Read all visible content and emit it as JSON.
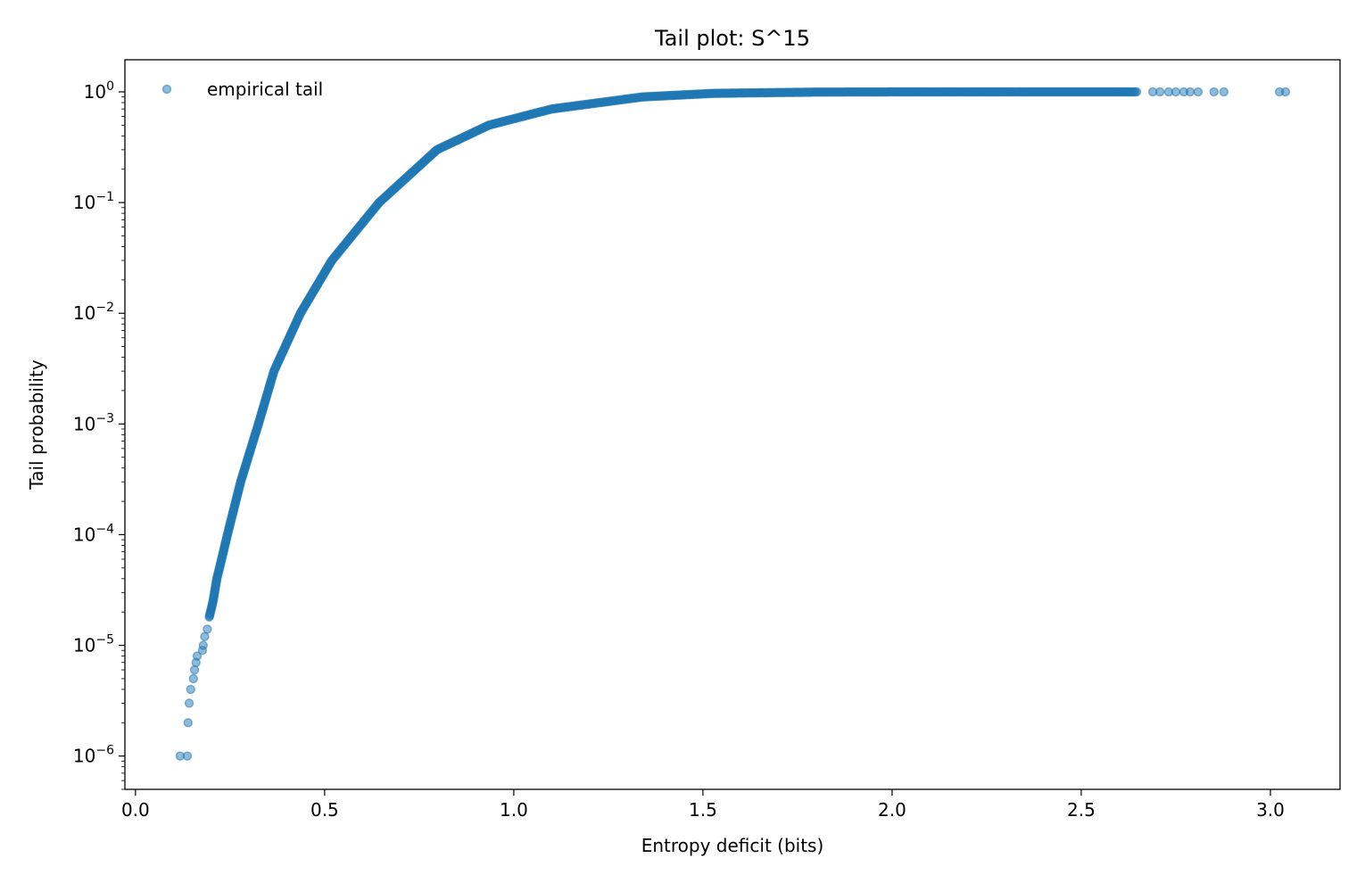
{
  "chart_data": {
    "type": "scatter",
    "title": "Tail plot: S^15",
    "xlabel": "Entropy deficit (bits)",
    "ylabel": "Tail probability",
    "xlim": [
      -0.028,
      3.184
    ],
    "ylim": [
      5e-07,
      1.95
    ],
    "yscale": "log",
    "grid": false,
    "legend": {
      "placement": "top-left",
      "entries": [
        "empirical tail"
      ]
    },
    "color": "#1f77b4",
    "xticks": [
      "0.0",
      "0.5",
      "1.0",
      "1.5",
      "2.0",
      "2.5",
      "3.0"
    ],
    "xtick_values": [
      0,
      0.5,
      1,
      1.5,
      2,
      2.5,
      3
    ],
    "ytick_exponents": [
      "0",
      "-1",
      "-2",
      "-3",
      "-4",
      "-5",
      "-6"
    ],
    "series": [
      {
        "name": "empirical tail",
        "isolated_points": [
          [
            0.118,
            1e-06
          ],
          [
            0.137,
            1e-06
          ],
          [
            0.139,
            2e-06
          ],
          [
            0.142,
            3e-06
          ],
          [
            0.146,
            4e-06
          ],
          [
            0.153,
            5e-06
          ],
          [
            0.156,
            6e-06
          ],
          [
            0.16,
            7e-06
          ],
          [
            0.163,
            8e-06
          ],
          [
            0.177,
            9e-06
          ],
          [
            0.179,
            1e-05
          ],
          [
            0.183,
            1.2e-05
          ],
          [
            0.19,
            1.4e-05
          ],
          [
            2.689,
            1
          ],
          [
            2.708,
            1
          ],
          [
            2.731,
            1
          ],
          [
            2.75,
            1
          ],
          [
            2.771,
            1
          ],
          [
            2.788,
            1
          ],
          [
            2.809,
            1
          ],
          [
            2.851,
            1
          ],
          [
            2.877,
            1
          ],
          [
            3.024,
            1
          ],
          [
            3.04,
            1
          ]
        ],
        "dense_curve": [
          [
            0.195,
            1.8e-05
          ],
          [
            0.205,
            2.5e-05
          ],
          [
            0.215,
            4e-05
          ],
          [
            0.225,
            5.5e-05
          ],
          [
            0.243,
            0.0001
          ],
          [
            0.278,
            0.0003
          ],
          [
            0.325,
            0.001
          ],
          [
            0.366,
            0.003
          ],
          [
            0.436,
            0.01
          ],
          [
            0.519,
            0.03
          ],
          [
            0.644,
            0.1
          ],
          [
            0.797,
            0.3
          ],
          [
            0.934,
            0.5
          ],
          [
            1.1,
            0.7
          ],
          [
            1.34,
            0.9
          ],
          [
            1.53,
            0.97
          ],
          [
            1.8,
            0.995
          ],
          [
            2.0,
            0.999
          ],
          [
            2.4,
            1
          ],
          [
            2.65,
            1
          ]
        ]
      }
    ]
  }
}
